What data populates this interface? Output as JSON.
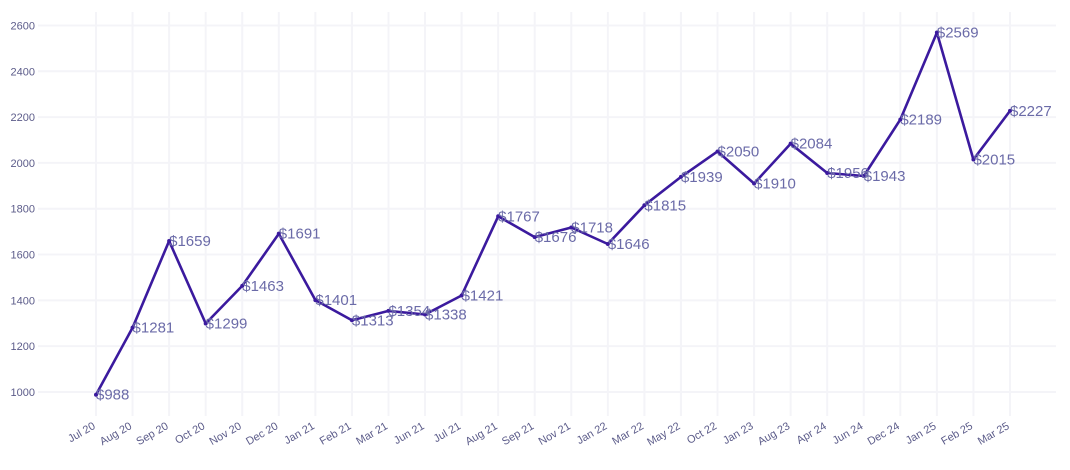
{
  "chart_data": {
    "type": "line",
    "title": "",
    "xlabel": "",
    "ylabel": "",
    "categories": [
      "Jul 20",
      "Aug 20",
      "Sep 20",
      "Oct 20",
      "Nov 20",
      "Dec 20",
      "Jan 21",
      "Feb 21",
      "Mar 21",
      "Jun 21",
      "Jul 21",
      "Aug 21",
      "Sep 21",
      "Nov 21",
      "Jan 22",
      "Mar 22",
      "May 22",
      "Oct 22",
      "Jan 23",
      "Aug 23",
      "Apr 24",
      "Jun 24",
      "Dec 24",
      "Jan 25",
      "Feb 25",
      "Mar 25"
    ],
    "values": [
      988,
      1281,
      1659,
      1299,
      1463,
      1691,
      1401,
      1313,
      1354,
      1338,
      1421,
      1767,
      1676,
      1718,
      1646,
      1815,
      1939,
      2050,
      1910,
      2084,
      1956,
      1943,
      2189,
      2569,
      2015,
      2227
    ],
    "data_labels": [
      "$988",
      "$1281",
      "$1659",
      "$1299",
      "$1463",
      "$1691",
      "$1401",
      "$1313",
      "$1354",
      "$1338",
      "$1421",
      "$1767",
      "$1676",
      "$1718",
      "$1646",
      "$1815",
      "$1939",
      "$2050",
      "$1910",
      "$2084",
      "$1956",
      "$1943",
      "$2189",
      "$2569",
      "$2015",
      "$2227"
    ],
    "yticks": [
      1000,
      1200,
      1400,
      1600,
      1800,
      2000,
      2200,
      2400,
      2600
    ],
    "ylim": [
      930,
      2650
    ],
    "grid": true,
    "legend": "none",
    "colors": {
      "line": "#3b1a9e",
      "label": "#6b6ba8",
      "tick": "#5c5c8a",
      "grid": "#f4f4f8"
    }
  }
}
